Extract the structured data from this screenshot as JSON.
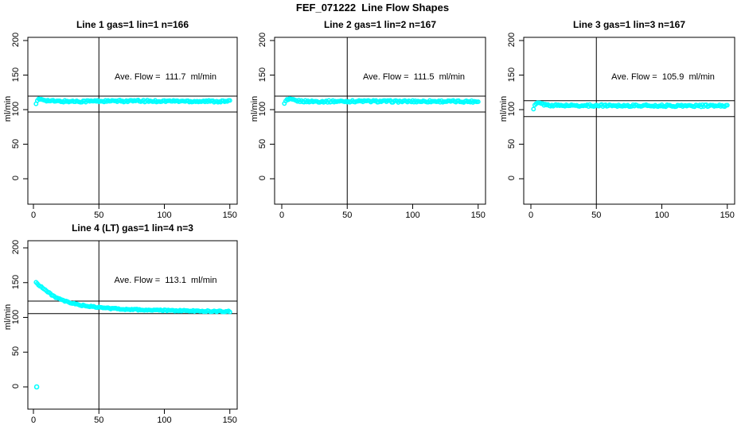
{
  "title": "FEF_071222  Line Flow Shapes",
  "colors": {
    "points": "#00FFFF",
    "axis": "#000000",
    "background": "#FFFFFF"
  },
  "chart_data": [
    {
      "type": "scatter",
      "title": "Line 1 gas=1 lin=1 n=166",
      "n": 166,
      "ave_flow": 111.7,
      "ave_flow_label": "Ave. Flow =  111.7  ml/min",
      "ylabel": "ml/min",
      "xlabel": "",
      "x_ticks": [
        0,
        50,
        100,
        150
      ],
      "y_ticks": [
        200,
        150,
        100,
        50,
        0
      ],
      "xlim": [
        -4,
        156
      ],
      "ylim": [
        -37,
        205
      ],
      "vline_x": 50,
      "ref_lines": [
        119.5,
        96.5
      ],
      "marker": "open-circle",
      "marker_color": "#00FFFF",
      "points": [
        [
          2,
          107.5
        ],
        [
          3,
          112.5
        ],
        [
          4,
          114.5
        ],
        [
          6,
          115
        ],
        [
          8,
          114.5
        ],
        [
          11,
          113
        ],
        [
          15,
          112.3
        ],
        [
          20,
          112
        ],
        [
          30,
          112
        ],
        [
          40,
          112.2
        ],
        [
          50,
          112.4
        ],
        [
          60,
          112.2
        ],
        [
          75,
          112.5
        ],
        [
          90,
          112.3
        ],
        [
          105,
          112.4
        ],
        [
          120,
          112.2
        ],
        [
          135,
          112
        ],
        [
          150,
          112
        ]
      ],
      "extra_points": []
    },
    {
      "type": "scatter",
      "title": "Line 2 gas=1 lin=2 n=167",
      "n": 167,
      "ave_flow": 111.5,
      "ave_flow_label": "Ave. Flow =  111.5  ml/min",
      "ylabel": "ml/min",
      "xlabel": "",
      "x_ticks": [
        0,
        50,
        100,
        150
      ],
      "y_ticks": [
        200,
        150,
        100,
        50,
        0
      ],
      "xlim": [
        -4,
        156
      ],
      "ylim": [
        -37,
        205
      ],
      "vline_x": 50,
      "ref_lines": [
        119.5,
        96.5
      ],
      "marker": "open-circle",
      "marker_color": "#00FFFF",
      "points": [
        [
          2,
          108
        ],
        [
          3,
          112
        ],
        [
          4,
          114
        ],
        [
          6,
          114.5
        ],
        [
          8,
          114
        ],
        [
          11,
          112.8
        ],
        [
          15,
          112.2
        ],
        [
          20,
          112
        ],
        [
          30,
          111.8
        ],
        [
          40,
          112
        ],
        [
          50,
          112
        ],
        [
          60,
          112.2
        ],
        [
          75,
          112
        ],
        [
          90,
          111.8
        ],
        [
          105,
          112
        ],
        [
          120,
          112
        ],
        [
          135,
          111.8
        ],
        [
          150,
          111.8
        ]
      ],
      "extra_points": []
    },
    {
      "type": "scatter",
      "title": "Line 3 gas=1 lin=3 n=167",
      "n": 167,
      "ave_flow": 105.9,
      "ave_flow_label": "Ave. Flow =  105.9  ml/min",
      "ylabel": "ml/min",
      "xlabel": "",
      "x_ticks": [
        0,
        50,
        100,
        150
      ],
      "y_ticks": [
        200,
        150,
        100,
        50,
        0
      ],
      "xlim": [
        -4,
        156
      ],
      "ylim": [
        -37,
        205
      ],
      "vline_x": 50,
      "ref_lines": [
        113,
        90
      ],
      "marker": "open-circle",
      "marker_color": "#00FFFF",
      "points": [
        [
          2,
          100
        ],
        [
          3,
          106
        ],
        [
          4,
          108.5
        ],
        [
          6,
          109.5
        ],
        [
          8,
          108.5
        ],
        [
          11,
          107
        ],
        [
          15,
          106.3
        ],
        [
          20,
          106
        ],
        [
          30,
          106
        ],
        [
          40,
          105.8
        ],
        [
          50,
          106
        ],
        [
          60,
          106
        ],
        [
          75,
          105.8
        ],
        [
          90,
          105.8
        ],
        [
          105,
          105.6
        ],
        [
          120,
          105.6
        ],
        [
          135,
          105.5
        ],
        [
          150,
          105.5
        ]
      ],
      "extra_points": []
    },
    {
      "type": "scatter",
      "title": "Line 4 (LT) gas=1 lin=4 n=3",
      "n": 3,
      "ave_flow": 113.1,
      "ave_flow_label": "Ave. Flow =  113.1  ml/min",
      "ylabel": "ml/min",
      "xlabel": "",
      "x_ticks": [
        0,
        50,
        100,
        150
      ],
      "y_ticks": [
        200,
        150,
        100,
        50,
        0
      ],
      "xlim": [
        -4,
        156
      ],
      "ylim": [
        -32,
        210
      ],
      "vline_x": 50,
      "ref_lines": [
        123.5,
        105.5
      ],
      "marker": "open-circle",
      "marker_color": "#00FFFF",
      "points": [
        [
          2,
          150
        ],
        [
          3,
          148.5
        ],
        [
          4,
          147
        ],
        [
          5,
          145.5
        ],
        [
          6,
          144
        ],
        [
          7,
          142.5
        ],
        [
          8,
          141
        ],
        [
          9,
          139.5
        ],
        [
          10,
          138
        ],
        [
          12,
          135
        ],
        [
          14,
          132.5
        ],
        [
          16,
          130
        ],
        [
          18,
          128
        ],
        [
          20,
          126
        ],
        [
          23,
          123.8
        ],
        [
          26,
          122
        ],
        [
          30,
          120
        ],
        [
          35,
          118
        ],
        [
          40,
          116.5
        ],
        [
          45,
          115.3
        ],
        [
          50,
          114.3
        ],
        [
          60,
          112.8
        ],
        [
          70,
          111.8
        ],
        [
          80,
          111
        ],
        [
          90,
          110.4
        ],
        [
          100,
          110
        ],
        [
          115,
          109.5
        ],
        [
          130,
          109
        ],
        [
          150,
          108.5
        ]
      ],
      "extra_points": [
        [
          2.5,
          0
        ]
      ]
    }
  ]
}
